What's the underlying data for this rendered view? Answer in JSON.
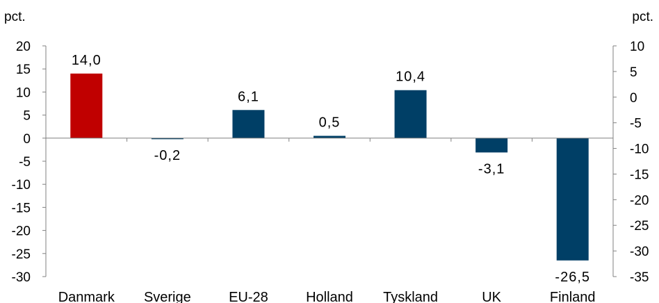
{
  "chart_data": {
    "type": "bar",
    "categories": [
      "Danmark",
      "Sverige",
      "EU-28",
      "Holland",
      "Tyskland",
      "UK",
      "Finland"
    ],
    "values": [
      14.0,
      -0.2,
      6.1,
      0.5,
      10.4,
      -3.1,
      -26.5
    ],
    "data_labels": [
      "14,0",
      "-0,2",
      "6,1",
      "0,5",
      "10,4",
      "-3,1",
      "-26,5"
    ],
    "bar_colors": [
      "#C00000",
      "#003F66",
      "#003F66",
      "#003F66",
      "#003F66",
      "#003F66",
      "#003F66"
    ],
    "left_axis": {
      "unit": "pct.",
      "ylim": [
        -30,
        20
      ],
      "ticks": [
        "20",
        "15",
        "10",
        "5",
        "0",
        "-5",
        "-10",
        "-15",
        "-20",
        "-25",
        "-30"
      ]
    },
    "right_axis": {
      "unit": "pct.",
      "ylim": [
        -35,
        10
      ],
      "ticks": [
        "10",
        "5",
        "0",
        "-5",
        "-10",
        "-15",
        "-20",
        "-25",
        "-30",
        "-35"
      ]
    },
    "grid": false,
    "legend": "none"
  }
}
